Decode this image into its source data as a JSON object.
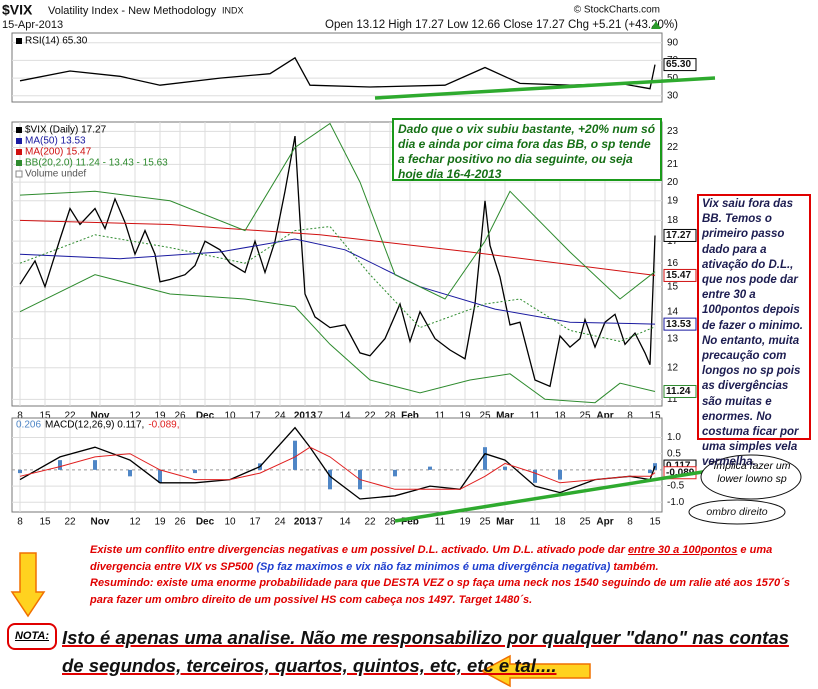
{
  "header": {
    "symbol": "$VIX",
    "name": "Volatility Index - New Methodology",
    "exchange": "INDX",
    "date": "15-Apr-2013",
    "quote": "Open 13.12  High 17.27  Low 12.66  Close 17.27  Chg +5.21 (+43.20%)",
    "copyright": "© StockCharts.com"
  },
  "chart_data": [
    {
      "type": "line",
      "ylim": [
        23,
        101
      ],
      "yticks": [
        90,
        70,
        50,
        30
      ],
      "xlim": [
        -1.6,
        128.4
      ],
      "grid": true,
      "legend": "column",
      "series": [
        {
          "name": "RSI(14) 65.30",
          "color": "#000000",
          "end_label": "65.30",
          "x": [
            0,
            10,
            20,
            28,
            40,
            50,
            55,
            58,
            70,
            85,
            93,
            100,
            110,
            120,
            126,
            127
          ],
          "values": [
            47,
            58,
            52,
            42,
            50,
            55,
            73,
            42,
            40,
            42,
            62,
            44,
            42,
            44,
            38,
            65.3
          ]
        }
      ]
    },
    {
      "type": "line",
      "log": true,
      "ylim": [
        10.8,
        23.6
      ],
      "yticks": [
        11,
        12,
        13,
        14,
        15,
        16,
        17,
        18,
        19,
        20,
        21,
        22,
        23
      ],
      "xlim": [
        -1.6,
        128.4
      ],
      "grid": true,
      "legend": "column",
      "xticks": [
        {
          "value": 0,
          "label": "8"
        },
        {
          "value": 5,
          "label": "15"
        },
        {
          "value": 10,
          "label": "22"
        },
        {
          "value": 16,
          "label": "Nov"
        },
        {
          "value": 23,
          "label": "12"
        },
        {
          "value": 28,
          "label": "19"
        },
        {
          "value": 32,
          "label": "26"
        },
        {
          "value": 37,
          "label": "Dec"
        },
        {
          "value": 42,
          "label": "10"
        },
        {
          "value": 47,
          "label": "17"
        },
        {
          "value": 52,
          "label": "24"
        },
        {
          "value": 57,
          "label": "2013"
        },
        {
          "value": 60,
          "label": "7"
        },
        {
          "value": 65,
          "label": "14"
        },
        {
          "value": 70,
          "label": "22"
        },
        {
          "value": 74,
          "label": "28"
        },
        {
          "value": 78,
          "label": "Feb"
        },
        {
          "value": 84,
          "label": "11"
        },
        {
          "value": 89,
          "label": "19"
        },
        {
          "value": 93,
          "label": "25"
        },
        {
          "value": 97,
          "label": "Mar"
        },
        {
          "value": 103,
          "label": "11"
        },
        {
          "value": 108,
          "label": "18"
        },
        {
          "value": 113,
          "label": "25"
        },
        {
          "value": 117,
          "label": "Apr"
        },
        {
          "value": 122,
          "label": "8"
        },
        {
          "value": 127,
          "label": "15"
        }
      ],
      "legend_extra": [
        "Volume undef"
      ],
      "series": [
        {
          "name": "$VIX (Daily) 17.27",
          "color": "#000000",
          "end_label": "17.27",
          "x": [
            0,
            3,
            5,
            8,
            10,
            12,
            15,
            17,
            19,
            21,
            23,
            25,
            27,
            28,
            30,
            33,
            35,
            37,
            40,
            42,
            45,
            47,
            49,
            51,
            53,
            55,
            56,
            57,
            59,
            62,
            65,
            68,
            70,
            73,
            76,
            78,
            80,
            83,
            86,
            89,
            91,
            93,
            94,
            96,
            98,
            100,
            103,
            106,
            108,
            110,
            112,
            113,
            115,
            117,
            119,
            121,
            123,
            125,
            126,
            127
          ],
          "values": [
            15.1,
            16.1,
            15.0,
            17.1,
            18.6,
            17.8,
            18.6,
            17.6,
            19.1,
            17.9,
            16.4,
            17.5,
            16.4,
            15.2,
            15.3,
            15.5,
            15.9,
            17.0,
            16.6,
            16.0,
            15.6,
            17.0,
            15.6,
            17.0,
            19.5,
            22.7,
            18.0,
            14.7,
            13.8,
            13.4,
            13.5,
            12.5,
            12.4,
            13.0,
            14.3,
            12.9,
            14.0,
            13.0,
            12.6,
            12.3,
            14.3,
            19.0,
            16.8,
            15.4,
            13.5,
            13.6,
            11.6,
            11.4,
            13.1,
            12.7,
            13.0,
            13.7,
            12.7,
            13.6,
            13.9,
            12.8,
            13.2,
            12.5,
            12.1,
            17.27
          ]
        },
        {
          "name": "MA(50) 13.53",
          "color": "#1a1aa0",
          "end_label": "13.53",
          "x": [
            0,
            20,
            40,
            55,
            65,
            80,
            95,
            110,
            127
          ],
          "values": [
            16.4,
            16.2,
            16.5,
            17.1,
            16.6,
            15.0,
            14.1,
            13.6,
            13.53
          ]
        },
        {
          "name": "MA(200) 15.47",
          "color": "#d01010",
          "end_label": "15.47",
          "x": [
            0,
            30,
            60,
            90,
            127
          ],
          "values": [
            18.0,
            17.8,
            17.3,
            16.5,
            15.47
          ]
        },
        {
          "name": "BB(20,2.0) 11.24 - 13.43 - 15.63",
          "color": "#2e8b2e",
          "x": [
            0,
            15,
            30,
            45,
            55,
            62,
            68,
            75,
            85,
            93,
            98,
            110,
            120,
            127
          ],
          "values": [
            19.3,
            19.5,
            19.0,
            17.5,
            22.0,
            23.5,
            20.0,
            15.5,
            14.5,
            17.0,
            19.5,
            16.5,
            14.5,
            15.63
          ]
        },
        {
          "color": "#2e8b2e",
          "style": "dotted",
          "x": [
            0,
            15,
            30,
            45,
            55,
            62,
            70,
            80,
            93,
            100,
            110,
            120,
            127
          ],
          "values": [
            16.0,
            17.3,
            16.7,
            16.0,
            17.5,
            17.7,
            15.5,
            13.4,
            14.3,
            14.5,
            13.3,
            12.9,
            13.43
          ]
        },
        {
          "color": "#2e8b2e",
          "end_label": "11.24",
          "x": [
            0,
            15,
            30,
            45,
            55,
            62,
            70,
            80,
            90,
            98,
            105,
            115,
            120,
            127
          ],
          "values": [
            14.0,
            15.5,
            14.7,
            14.5,
            14.2,
            12.8,
            11.6,
            11.2,
            11.6,
            11.8,
            11.0,
            10.9,
            11.5,
            11.24
          ]
        }
      ]
    },
    {
      "type": "line",
      "ylim": [
        -1.3,
        1.6
      ],
      "yticks": [
        {
          "value": 1,
          "label": "1.0"
        },
        0.5,
        -0.5,
        {
          "value": -1,
          "label": "-1.0"
        }
      ],
      "xlim": [
        -1.6,
        128.4
      ],
      "grid": true,
      "legend": "row",
      "xticks": [
        {
          "value": 0,
          "label": "8"
        },
        {
          "value": 5,
          "label": "15"
        },
        {
          "value": 10,
          "label": "22"
        },
        {
          "value": 16,
          "label": "Nov"
        },
        {
          "value": 23,
          "label": "12"
        },
        {
          "value": 28,
          "label": "19"
        },
        {
          "value": 32,
          "label": "26"
        },
        {
          "value": 37,
          "label": "Dec"
        },
        {
          "value": 42,
          "label": "10"
        },
        {
          "value": 47,
          "label": "17"
        },
        {
          "value": 52,
          "label": "24"
        },
        {
          "value": 57,
          "label": "2013"
        },
        {
          "value": 60,
          "label": "7"
        },
        {
          "value": 65,
          "label": "14"
        },
        {
          "value": 70,
          "label": "22"
        },
        {
          "value": 74,
          "label": "28"
        },
        {
          "value": 78,
          "label": "Feb"
        },
        {
          "value": 84,
          "label": "11"
        },
        {
          "value": 89,
          "label": "19"
        },
        {
          "value": 93,
          "label": "25"
        },
        {
          "value": 97,
          "label": "Mar"
        },
        {
          "value": 103,
          "label": "11"
        },
        {
          "value": 108,
          "label": "18"
        },
        {
          "value": 113,
          "label": "25"
        },
        {
          "value": 117,
          "label": "Apr"
        },
        {
          "value": 122,
          "label": "8"
        },
        {
          "value": 127,
          "label": "15"
        }
      ],
      "series": [
        {
          "name": "0.206",
          "color": "#4f86c6",
          "style": "bar",
          "x": [
            0,
            8,
            15,
            22,
            28,
            35,
            42,
            48,
            55,
            58,
            62,
            68,
            75,
            82,
            88,
            93,
            97,
            103,
            108,
            115,
            122,
            126,
            127
          ],
          "values": [
            -0.1,
            0.3,
            0.3,
            -0.2,
            -0.4,
            -0.1,
            0,
            0.2,
            0.9,
            0,
            -0.6,
            -0.6,
            -0.2,
            0.1,
            0,
            0.7,
            0.1,
            -0.4,
            -0.3,
            0,
            0,
            -0.1,
            0.206
          ]
        },
        {
          "name": "MACD(12,26,9) 0.117,",
          "color": "#000000",
          "end_label": "0.117",
          "x": [
            0,
            8,
            15,
            22,
            28,
            35,
            42,
            48,
            55,
            58,
            62,
            68,
            75,
            82,
            88,
            93,
            97,
            103,
            108,
            115,
            122,
            126,
            127
          ],
          "values": [
            -0.3,
            0.4,
            0.7,
            0.3,
            -0.4,
            -0.4,
            -0.3,
            0.1,
            1.3,
            0.7,
            -0.2,
            -0.9,
            -0.8,
            -0.5,
            -0.6,
            0.5,
            0.3,
            -0.5,
            -0.7,
            -0.3,
            -0.2,
            -0.3,
            0.117
          ]
        },
        {
          "name": "-0.089,",
          "color": "#e02020",
          "end_label": "-0.089",
          "x": [
            0,
            8,
            15,
            22,
            28,
            35,
            42,
            48,
            55,
            58,
            62,
            68,
            75,
            82,
            88,
            93,
            97,
            103,
            108,
            115,
            122,
            126,
            127
          ],
          "values": [
            -0.2,
            0.1,
            0.4,
            0.5,
            0.0,
            -0.3,
            -0.3,
            -0.1,
            0.4,
            0.7,
            0.4,
            -0.3,
            -0.6,
            -0.6,
            -0.6,
            -0.2,
            0.2,
            -0.1,
            -0.4,
            -0.3,
            -0.2,
            -0.2,
            -0.089
          ]
        }
      ]
    }
  ],
  "annotations": {
    "green_box": "Dado que o vix subiu bastante, +20% num só dia e ainda por cima fora das BB, o sp tende a fechar positivo no dia seguinte, ou seja hoje dia 16-4-2013",
    "red_box": "Vix saiu fora das BB. Temos o primeiro passo dado para a ativação do D.L., que nos pode dar entre 30 a 100pontos depois de fazer o minimo. No entanto, muita precaução com longos no sp pois as divergências são muitas e enormes. No costuma ficar por uma simples vela vermelha.",
    "bubble_1": "Implica fazer um lower lowno sp",
    "bubble_2": "ombro direito",
    "paragraph": [
      "Existe um conflito entre divergencias negativas e um possivel D.L. activado. Um D.L. ativado pode dar ",
      "entre 30 a 100pontos",
      " e uma divergencia entre VIX vs SP500 ",
      "(Sp faz maximos e vix não faz minimos é uma divergência negativa)",
      " também.",
      "Resumindo: existe uma enorme probabilidade para que DESTA VEZ o sp faça uma neck nos 1540 seguindo de um ralie até aos 1570´s para fazer um ombro direito de um possivel HS com cabeça nos 1497. Target 1480´s."
    ],
    "nota_label": "NOTA:",
    "nota_text": "Isto é apenas uma analise. Não me responsabilizo por qualquer \"dano\" nas contas de segundos, terceiros, quartos, quintos, etc, etc e tal...."
  }
}
